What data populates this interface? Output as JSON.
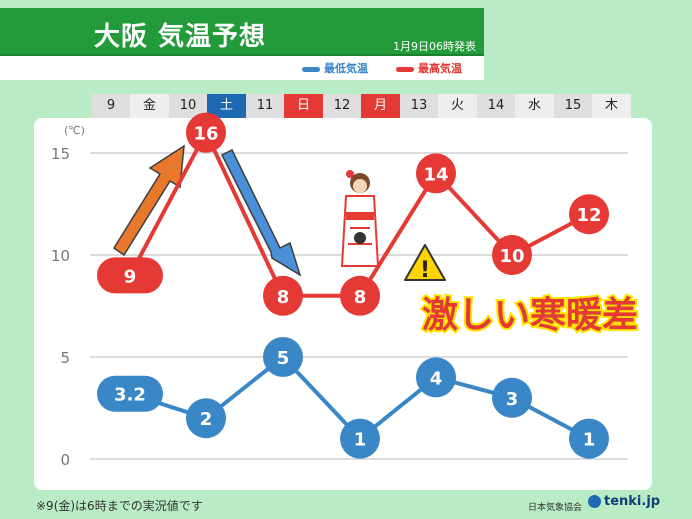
{
  "header": {
    "title": "大阪 気温予想",
    "date": "1月9日06時発表"
  },
  "legend": {
    "min_label": "最低気温",
    "max_label": "最高気温",
    "min_color": "#3a87c7",
    "max_color": "#e53935"
  },
  "days": [
    {
      "num": "9",
      "weekday": "金",
      "type": "weekday"
    },
    {
      "num": "10",
      "weekday": "土",
      "type": "sat"
    },
    {
      "num": "11",
      "weekday": "日",
      "type": "sun"
    },
    {
      "num": "12",
      "weekday": "月",
      "type": "holiday"
    },
    {
      "num": "13",
      "weekday": "火",
      "type": "weekday"
    },
    {
      "num": "14",
      "weekday": "水",
      "type": "weekday"
    },
    {
      "num": "15",
      "weekday": "木",
      "type": "weekday"
    }
  ],
  "chart_data": {
    "type": "line",
    "ylabel": "(℃)",
    "ylim": [
      0,
      16
    ],
    "yticks": [
      0,
      5,
      10,
      15
    ],
    "grid": true,
    "categories": [
      "9",
      "10",
      "11",
      "12",
      "13",
      "14",
      "15"
    ],
    "series": [
      {
        "name": "最高気温",
        "values": [
          9,
          16,
          8,
          8,
          14,
          10,
          12
        ],
        "labels": [
          "9",
          "16",
          "8",
          "8",
          "14",
          "10",
          "12"
        ],
        "color": "#e53935"
      },
      {
        "name": "最低気温",
        "values": [
          3.2,
          2,
          5,
          1,
          4,
          3,
          1
        ],
        "labels": [
          "3.2",
          "2",
          "5",
          "1",
          "4",
          "3",
          "1"
        ],
        "color": "#3a87c7"
      }
    ]
  },
  "annotation": {
    "text": "激しい寒暖差",
    "warning_icon": "warning-icon"
  },
  "footnote": "※9(金)は6時までの実況値です",
  "org": "日本気象協会",
  "logo_text": "tenki.jp"
}
